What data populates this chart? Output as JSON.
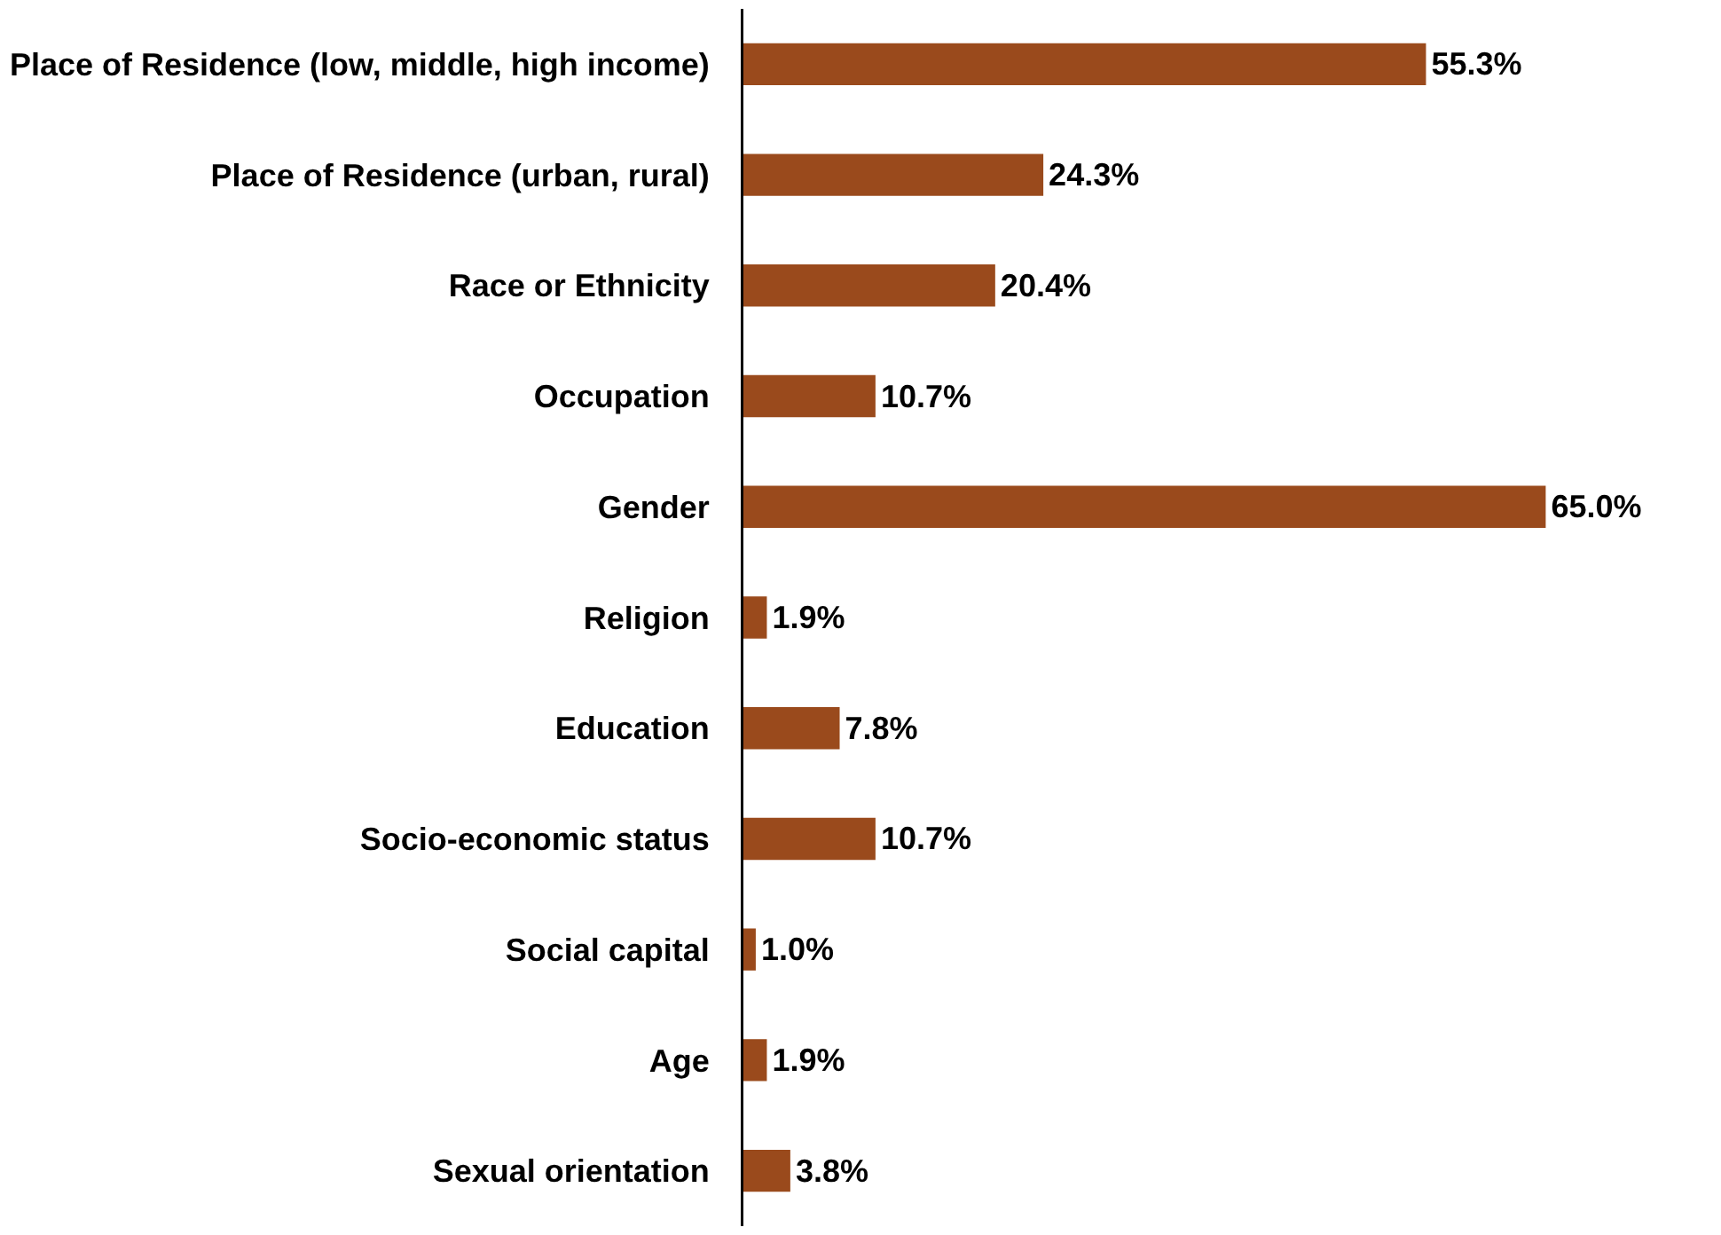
{
  "chart_data": {
    "type": "bar",
    "orientation": "horizontal",
    "categories": [
      "Place of Residence (low, middle, high income)",
      "Place of Residence (urban, rural)",
      "Race or Ethnicity",
      "Occupation",
      "Gender",
      "Religion",
      "Education",
      "Socio-economic status",
      "Social capital",
      "Age",
      "Sexual orientation"
    ],
    "values": [
      55.3,
      24.3,
      20.4,
      10.7,
      65.0,
      1.9,
      7.8,
      10.7,
      1.0,
      1.9,
      3.8
    ],
    "value_labels": [
      "55.3%",
      "24.3%",
      "20.4%",
      "10.7%",
      "65.0%",
      "1.9%",
      "7.8%",
      "10.7%",
      "1.0%",
      "1.9%",
      "3.8%"
    ],
    "color": "#9a4a1c"
  }
}
